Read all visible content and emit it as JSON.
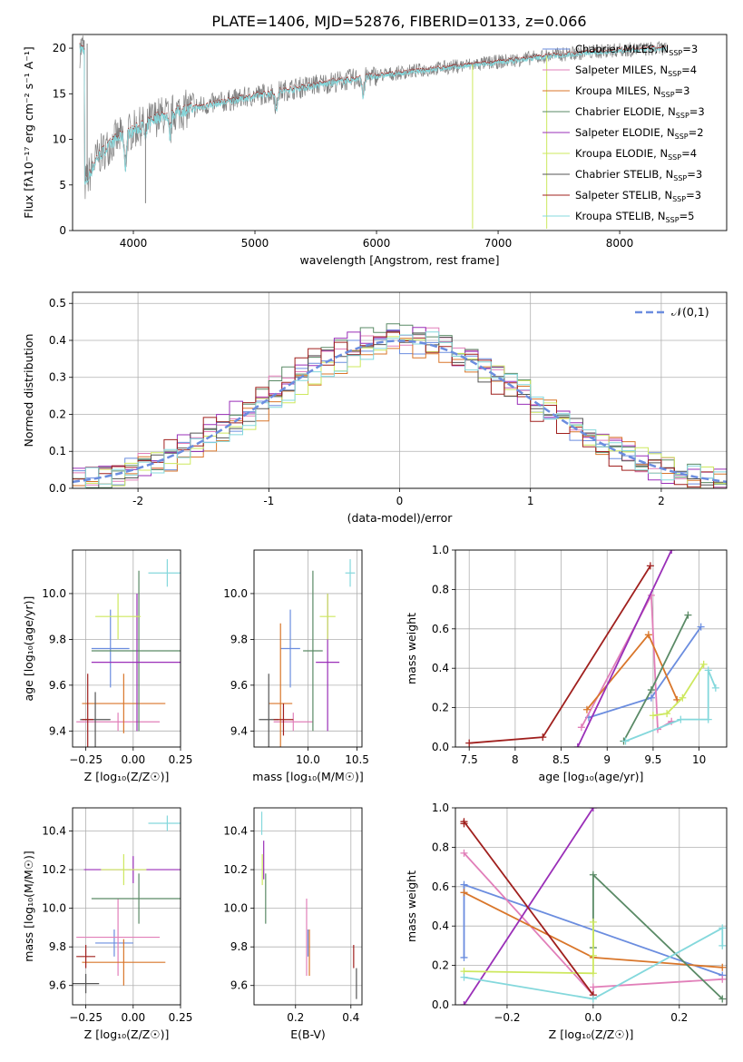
{
  "title": "PLATE=1406, MJD=52876, FIBERID=0133, z=0.066",
  "models": [
    {
      "label": "Chabrier MILES, N",
      "nssp": "=3",
      "color": "#6b8ddf"
    },
    {
      "label": "Salpeter MILES, N",
      "nssp": "=4",
      "color": "#e17fb9"
    },
    {
      "label": "Kroupa MILES, N",
      "nssp": "=3",
      "color": "#d9762a"
    },
    {
      "label": "Chabrier ELODIE, N",
      "nssp": "=3",
      "color": "#5a8a66"
    },
    {
      "label": "Salpeter ELODIE, N",
      "nssp": "=2",
      "color": "#9a2fb8"
    },
    {
      "label": "Kroupa ELODIE, N",
      "nssp": "=4",
      "color": "#cde85e"
    },
    {
      "label": "Chabrier STELIB, N",
      "nssp": "=3",
      "color": "#555555"
    },
    {
      "label": "Salpeter STELIB, N",
      "nssp": "=3",
      "color": "#a0201e"
    },
    {
      "label": "Kroupa STELIB, N",
      "nssp": "=5",
      "color": "#84d8dc"
    }
  ],
  "chart_data": [
    {
      "type": "line",
      "id": "spectrum",
      "xlabel": "wavelength [Angstrom, rest frame]",
      "ylabel": "Flux [fλ10⁻¹⁷ erg cm⁻² s⁻¹ A⁻¹]",
      "xlim": [
        3500,
        8880
      ],
      "ylim": [
        0,
        21.5
      ],
      "xticks": [
        4000,
        5000,
        6000,
        7000,
        8000
      ],
      "yticks": [
        0,
        5,
        10,
        15,
        20
      ],
      "continuum": [
        [
          3600,
          5
        ],
        [
          3700,
          8
        ],
        [
          3850,
          10
        ],
        [
          4000,
          11
        ],
        [
          4200,
          12.5
        ],
        [
          4500,
          13.5
        ],
        [
          5000,
          14.8
        ],
        [
          5500,
          16
        ],
        [
          6000,
          17
        ],
        [
          6500,
          17.8
        ],
        [
          7000,
          18.5
        ],
        [
          7500,
          19.3
        ],
        [
          8000,
          19.8
        ],
        [
          8400,
          20
        ]
      ],
      "data_color": "#808080",
      "model_color": "#84d8dc",
      "dips": [
        [
          3934,
          3.5
        ],
        [
          4102,
          2
        ],
        [
          4300,
          2.5
        ],
        [
          5175,
          2
        ],
        [
          5890,
          2
        ]
      ],
      "spikes": [
        [
          3620,
          20.5
        ],
        [
          4100,
          3
        ],
        [
          6790,
          0.2
        ],
        [
          7400,
          0.2
        ]
      ]
    },
    {
      "type": "bar",
      "id": "residuals",
      "xlabel": "(data-model)/error",
      "ylabel": "Normed distribution",
      "xlim": [
        -2.5,
        2.5
      ],
      "ylim": [
        0,
        0.53
      ],
      "xticks": [
        -2,
        -1,
        0,
        1,
        2
      ],
      "yticks": [
        0,
        0.1,
        0.2,
        0.3,
        0.4,
        0.5
      ],
      "bin_width": 0.1,
      "series_peak_scales": [
        1.0,
        1.05,
        0.97,
        1.07,
        1.04,
        0.98,
        1.01,
        1.02,
        0.99
      ],
      "series_shifts": [
        0.02,
        -0.03,
        0.05,
        0.0,
        -0.05,
        0.04,
        -0.02,
        -0.08,
        0.07
      ],
      "normal_curve": {
        "label": "𝒩(0,1)",
        "mean": 0,
        "sigma": 1,
        "color": "#6b8ddf"
      }
    },
    {
      "type": "scatter",
      "id": "age-vs-Z",
      "xlabel": "Z [log₁₀(Z/Z☉)]",
      "ylabel": "age  [log₁₀(age/yr)]",
      "xlim": [
        -0.32,
        0.25
      ],
      "ylim": [
        9.33,
        10.19
      ],
      "xticks": [
        -0.25,
        0.0,
        0.25
      ],
      "xticklabels": [
        "−0.25",
        "0.00",
        "0.25"
      ],
      "yticks": [
        9.4,
        9.6,
        9.8,
        10.0
      ],
      "points": [
        {
          "m": 0,
          "x": -0.12,
          "xe": 0.1,
          "y": 9.76,
          "ye": 0.17
        },
        {
          "m": 1,
          "x": -0.08,
          "xe": 0.22,
          "y": 9.44,
          "ye": 0.04
        },
        {
          "m": 2,
          "x": -0.05,
          "xe": 0.22,
          "y": 9.52,
          "ye": 0.13
        },
        {
          "m": 3,
          "x": 0.03,
          "xe": 0.25,
          "y": 9.75,
          "ye": 0.35
        },
        {
          "m": 4,
          "x": 0.02,
          "xe": 0.24,
          "y": 9.7,
          "ye": 0.3
        },
        {
          "m": 5,
          "x": -0.08,
          "xe": 0.12,
          "y": 9.9,
          "ye": 0.1
        },
        {
          "m": 6,
          "x": -0.2,
          "xe": 0.08,
          "y": 9.45,
          "ye": 0.12
        },
        {
          "m": 7,
          "x": -0.24,
          "xe": 0.03,
          "y": 9.45,
          "ye": 0.2
        },
        {
          "m": 8,
          "x": 0.18,
          "xe": 0.1,
          "y": 10.09,
          "ye": 0.06
        }
      ]
    },
    {
      "type": "scatter",
      "id": "age-vs-mass",
      "xlabel": "mass [log₁₀(M/M☉)]",
      "ylabel": "",
      "xlim": [
        9.45,
        10.55
      ],
      "ylim": [
        9.33,
        10.19
      ],
      "xticks": [
        10.0,
        10.5
      ],
      "xticklabels": [
        "10.0",
        "10.5"
      ],
      "yticks": [
        9.4,
        9.6,
        9.8,
        10.0
      ],
      "points": [
        {
          "m": 0,
          "x": 9.82,
          "xe": 0.1,
          "y": 9.76,
          "ye": 0.17
        },
        {
          "m": 1,
          "x": 9.85,
          "xe": 0.2,
          "y": 9.44,
          "ye": 0.04
        },
        {
          "m": 2,
          "x": 9.72,
          "xe": 0.12,
          "y": 9.52,
          "ye": 0.35
        },
        {
          "m": 3,
          "x": 10.05,
          "xe": 0.1,
          "y": 9.75,
          "ye": 0.35
        },
        {
          "m": 4,
          "x": 10.2,
          "xe": 0.12,
          "y": 9.7,
          "ye": 0.3
        },
        {
          "m": 5,
          "x": 10.2,
          "xe": 0.08,
          "y": 9.9,
          "ye": 0.1
        },
        {
          "m": 6,
          "x": 9.6,
          "xe": 0.1,
          "y": 9.45,
          "ye": 0.2
        },
        {
          "m": 7,
          "x": 9.75,
          "xe": 0.1,
          "y": 9.45,
          "ye": 0.07
        },
        {
          "m": 8,
          "x": 10.43,
          "xe": 0.05,
          "y": 10.09,
          "ye": 0.06
        }
      ]
    },
    {
      "type": "line",
      "id": "weight-vs-age",
      "xlabel": "age  [log₁₀(age/yr)]",
      "ylabel": "mass weight",
      "xlim": [
        7.35,
        10.3
      ],
      "ylim": [
        0,
        1
      ],
      "xticks": [
        7.5,
        8.0,
        8.5,
        9.0,
        9.5,
        10.0
      ],
      "yticks": [
        0,
        0.2,
        0.4,
        0.6,
        0.8,
        1.0
      ],
      "series": [
        {
          "m": 0,
          "x": [
            8.8,
            9.48,
            10.02
          ],
          "y": [
            0.15,
            0.25,
            0.61
          ]
        },
        {
          "m": 1,
          "x": [
            8.72,
            9.48,
            9.55,
            9.7
          ],
          "y": [
            0.1,
            0.77,
            0.09,
            0.13
          ]
        },
        {
          "m": 2,
          "x": [
            8.78,
            9.45,
            9.76
          ],
          "y": [
            0.19,
            0.57,
            0.24
          ]
        },
        {
          "m": 3,
          "x": [
            9.18,
            9.48,
            9.88
          ],
          "y": [
            0.03,
            0.29,
            0.67
          ]
        },
        {
          "m": 4,
          "x": [
            8.68,
            9.7
          ],
          "y": [
            0.0,
            1.0
          ]
        },
        {
          "m": 5,
          "x": [
            9.5,
            9.65,
            9.82,
            10.05
          ],
          "y": [
            0.16,
            0.17,
            0.25,
            0.42
          ]
        },
        {
          "m": 7,
          "x": [
            7.5,
            8.3,
            9.47
          ],
          "y": [
            0.02,
            0.05,
            0.92
          ]
        },
        {
          "m": 8,
          "x": [
            9.2,
            9.8,
            10.1,
            10.1,
            10.18
          ],
          "y": [
            0.03,
            0.14,
            0.14,
            0.39,
            0.3
          ]
        }
      ]
    },
    {
      "type": "scatter",
      "id": "mass-vs-Z",
      "xlabel": "Z [log₁₀(Z/Z☉)]",
      "ylabel": "mass [log₁₀(M/M☉)]",
      "xlim": [
        -0.32,
        0.25
      ],
      "ylim": [
        9.5,
        10.52
      ],
      "xticks": [
        -0.25,
        0.0,
        0.25
      ],
      "xticklabels": [
        "−0.25",
        "0.00",
        "0.25"
      ],
      "yticks": [
        9.6,
        9.8,
        10.0,
        10.2,
        10.4
      ],
      "points": [
        {
          "m": 0,
          "x": -0.1,
          "xe": 0.1,
          "y": 9.82,
          "ye": 0.07
        },
        {
          "m": 1,
          "x": -0.08,
          "xe": 0.22,
          "y": 9.85,
          "ye": 0.2
        },
        {
          "m": 2,
          "x": -0.05,
          "xe": 0.22,
          "y": 9.72,
          "ye": 0.12
        },
        {
          "m": 3,
          "x": 0.03,
          "xe": 0.25,
          "y": 10.05,
          "ye": 0.13
        },
        {
          "m": 4,
          "x": 0.0,
          "xe": 0.26,
          "y": 10.2,
          "ye": 0.07
        },
        {
          "m": 5,
          "x": -0.05,
          "xe": 0.12,
          "y": 10.2,
          "ye": 0.08
        },
        {
          "m": 6,
          "x": -0.25,
          "xe": 0.07,
          "y": 9.61,
          "ye": 0.05
        },
        {
          "m": 7,
          "x": -0.25,
          "xe": 0.05,
          "y": 9.75,
          "ye": 0.06
        },
        {
          "m": 8,
          "x": 0.18,
          "xe": 0.1,
          "y": 10.44,
          "ye": 0.04
        }
      ]
    },
    {
      "type": "scatter",
      "id": "mass-vs-ebv",
      "xlabel": "E(B-V)",
      "ylabel": "",
      "xlim": [
        0.05,
        0.44
      ],
      "ylim": [
        9.5,
        10.52
      ],
      "xticks": [
        0.2,
        0.4
      ],
      "xticklabels": [
        "0.2",
        "0.4"
      ],
      "yticks": [
        9.6,
        9.8,
        10.0,
        10.2,
        10.4
      ],
      "points": [
        {
          "m": 0,
          "x": 0.245,
          "xe": 0,
          "y": 9.82,
          "ye": 0.07
        },
        {
          "m": 1,
          "x": 0.24,
          "xe": 0,
          "y": 9.85,
          "ye": 0.2
        },
        {
          "m": 2,
          "x": 0.25,
          "xe": 0,
          "y": 9.77,
          "ye": 0.12
        },
        {
          "m": 3,
          "x": 0.092,
          "xe": 0,
          "y": 10.05,
          "ye": 0.13
        },
        {
          "m": 4,
          "x": 0.085,
          "xe": 0,
          "y": 10.25,
          "ye": 0.1
        },
        {
          "m": 5,
          "x": 0.08,
          "xe": 0,
          "y": 10.2,
          "ye": 0.08
        },
        {
          "m": 6,
          "x": 0.42,
          "xe": 0,
          "y": 9.61,
          "ye": 0.08
        },
        {
          "m": 7,
          "x": 0.41,
          "xe": 0,
          "y": 9.75,
          "ye": 0.06
        },
        {
          "m": 8,
          "x": 0.078,
          "xe": 0,
          "y": 10.44,
          "ye": 0.06
        }
      ]
    },
    {
      "type": "line",
      "id": "weight-vs-Z",
      "xlabel": "Z [log₁₀(Z/Z☉)]",
      "ylabel": "mass weight",
      "xlim": [
        -0.32,
        0.31
      ],
      "ylim": [
        0,
        1
      ],
      "xticks": [
        -0.2,
        0.0,
        0.2
      ],
      "xticklabels": [
        "−0.2",
        "0.0",
        "0.2"
      ],
      "yticks": [
        0,
        0.2,
        0.4,
        0.6,
        0.8,
        1.0
      ],
      "series": [
        {
          "m": 0,
          "x": [
            -0.3,
            -0.3,
            0.3
          ],
          "y": [
            0.24,
            0.61,
            0.15
          ]
        },
        {
          "m": 1,
          "x": [
            -0.3,
            0.0,
            0.0,
            0.3
          ],
          "y": [
            0.77,
            0.05,
            0.09,
            0.13
          ]
        },
        {
          "m": 2,
          "x": [
            -0.3,
            0.0,
            0.3
          ],
          "y": [
            0.57,
            0.24,
            0.19
          ]
        },
        {
          "m": 3,
          "x": [
            0.0,
            0.0,
            0.3
          ],
          "y": [
            0.29,
            0.66,
            0.03
          ]
        },
        {
          "m": 4,
          "x": [
            -0.3,
            0.0
          ],
          "y": [
            0.0,
            1.0
          ]
        },
        {
          "m": 5,
          "x": [
            -0.3,
            0.0,
            0.0,
            0.0
          ],
          "y": [
            0.17,
            0.16,
            0.25,
            0.42
          ]
        },
        {
          "m": 7,
          "x": [
            -0.3,
            -0.3,
            0.0
          ],
          "y": [
            0.92,
            0.93,
            0.05
          ]
        },
        {
          "m": 8,
          "x": [
            -0.3,
            0.0,
            0.3,
            0.3
          ],
          "y": [
            0.14,
            0.03,
            0.39,
            0.3
          ]
        }
      ]
    }
  ]
}
